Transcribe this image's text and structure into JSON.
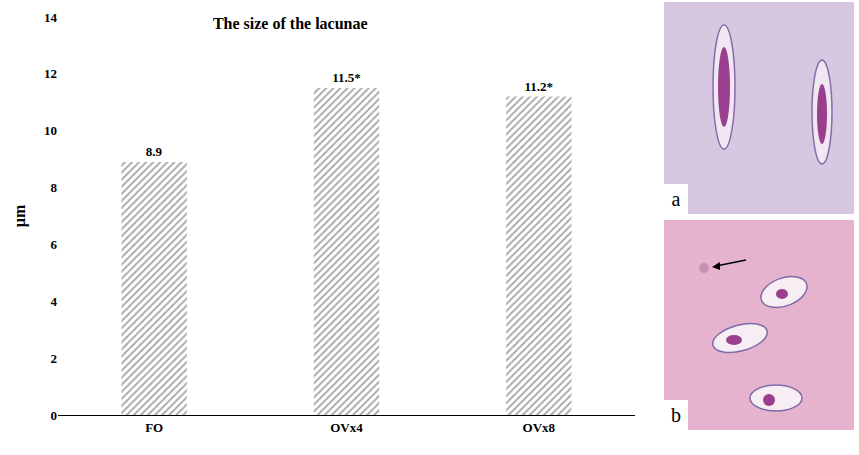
{
  "chart_data": {
    "type": "bar",
    "title": "The size of the lacunae",
    "y_label": "µm",
    "categories": [
      "FO",
      "OVx4",
      "OVx8"
    ],
    "values": [
      8.9,
      11.5,
      11.2
    ],
    "value_labels": [
      "8.9",
      "11.5*",
      "11.2*"
    ],
    "data_labels": true,
    "color": "#a6a6a6",
    "ylim": [
      0,
      14
    ],
    "yticks": [
      0,
      2,
      4,
      6,
      8,
      10,
      12,
      14
    ],
    "grid": false
  },
  "panels": [
    {
      "label": "a"
    },
    {
      "label": "b"
    }
  ]
}
